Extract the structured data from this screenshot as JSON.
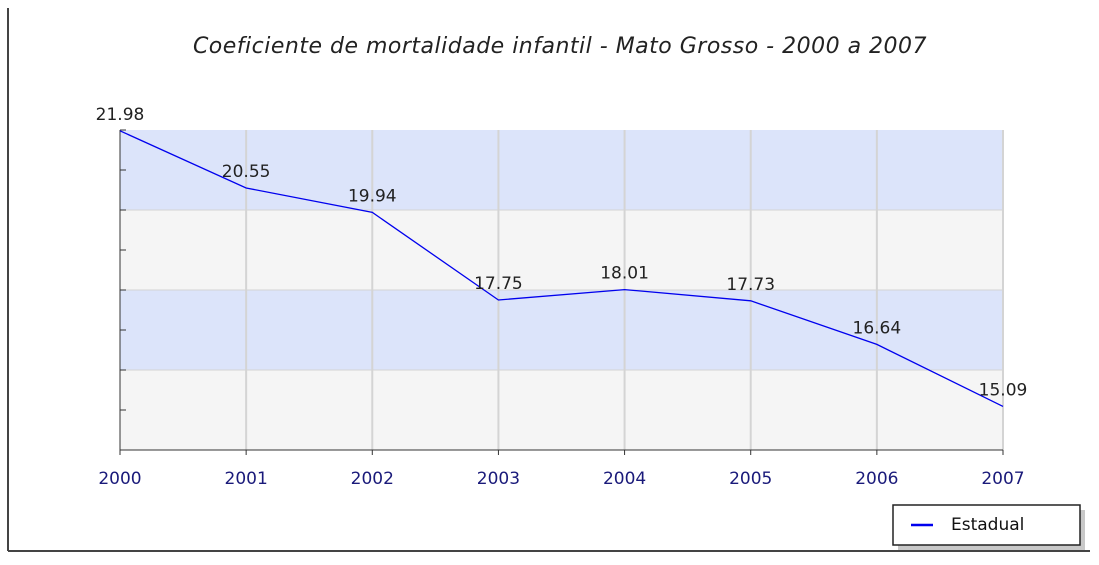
{
  "chart_data": {
    "type": "line",
    "title": "Coeficiente de mortalidade infantil - Mato Grosso - 2000 a 2007",
    "categories": [
      "2000",
      "2001",
      "2002",
      "2003",
      "2004",
      "2005",
      "2006",
      "2007"
    ],
    "series": [
      {
        "name": "Estadual",
        "color": "#0000ee",
        "values": [
          21.98,
          20.55,
          19.94,
          17.75,
          18.01,
          17.73,
          16.64,
          15.09
        ]
      }
    ],
    "ylim": [
      14,
      22
    ],
    "yticks": [
      14,
      15,
      16,
      17,
      18,
      19,
      20,
      21,
      22
    ],
    "band_colors": [
      "#dce4fa",
      "#f5f5f5"
    ],
    "grid": true,
    "legend": "bottom-right"
  }
}
